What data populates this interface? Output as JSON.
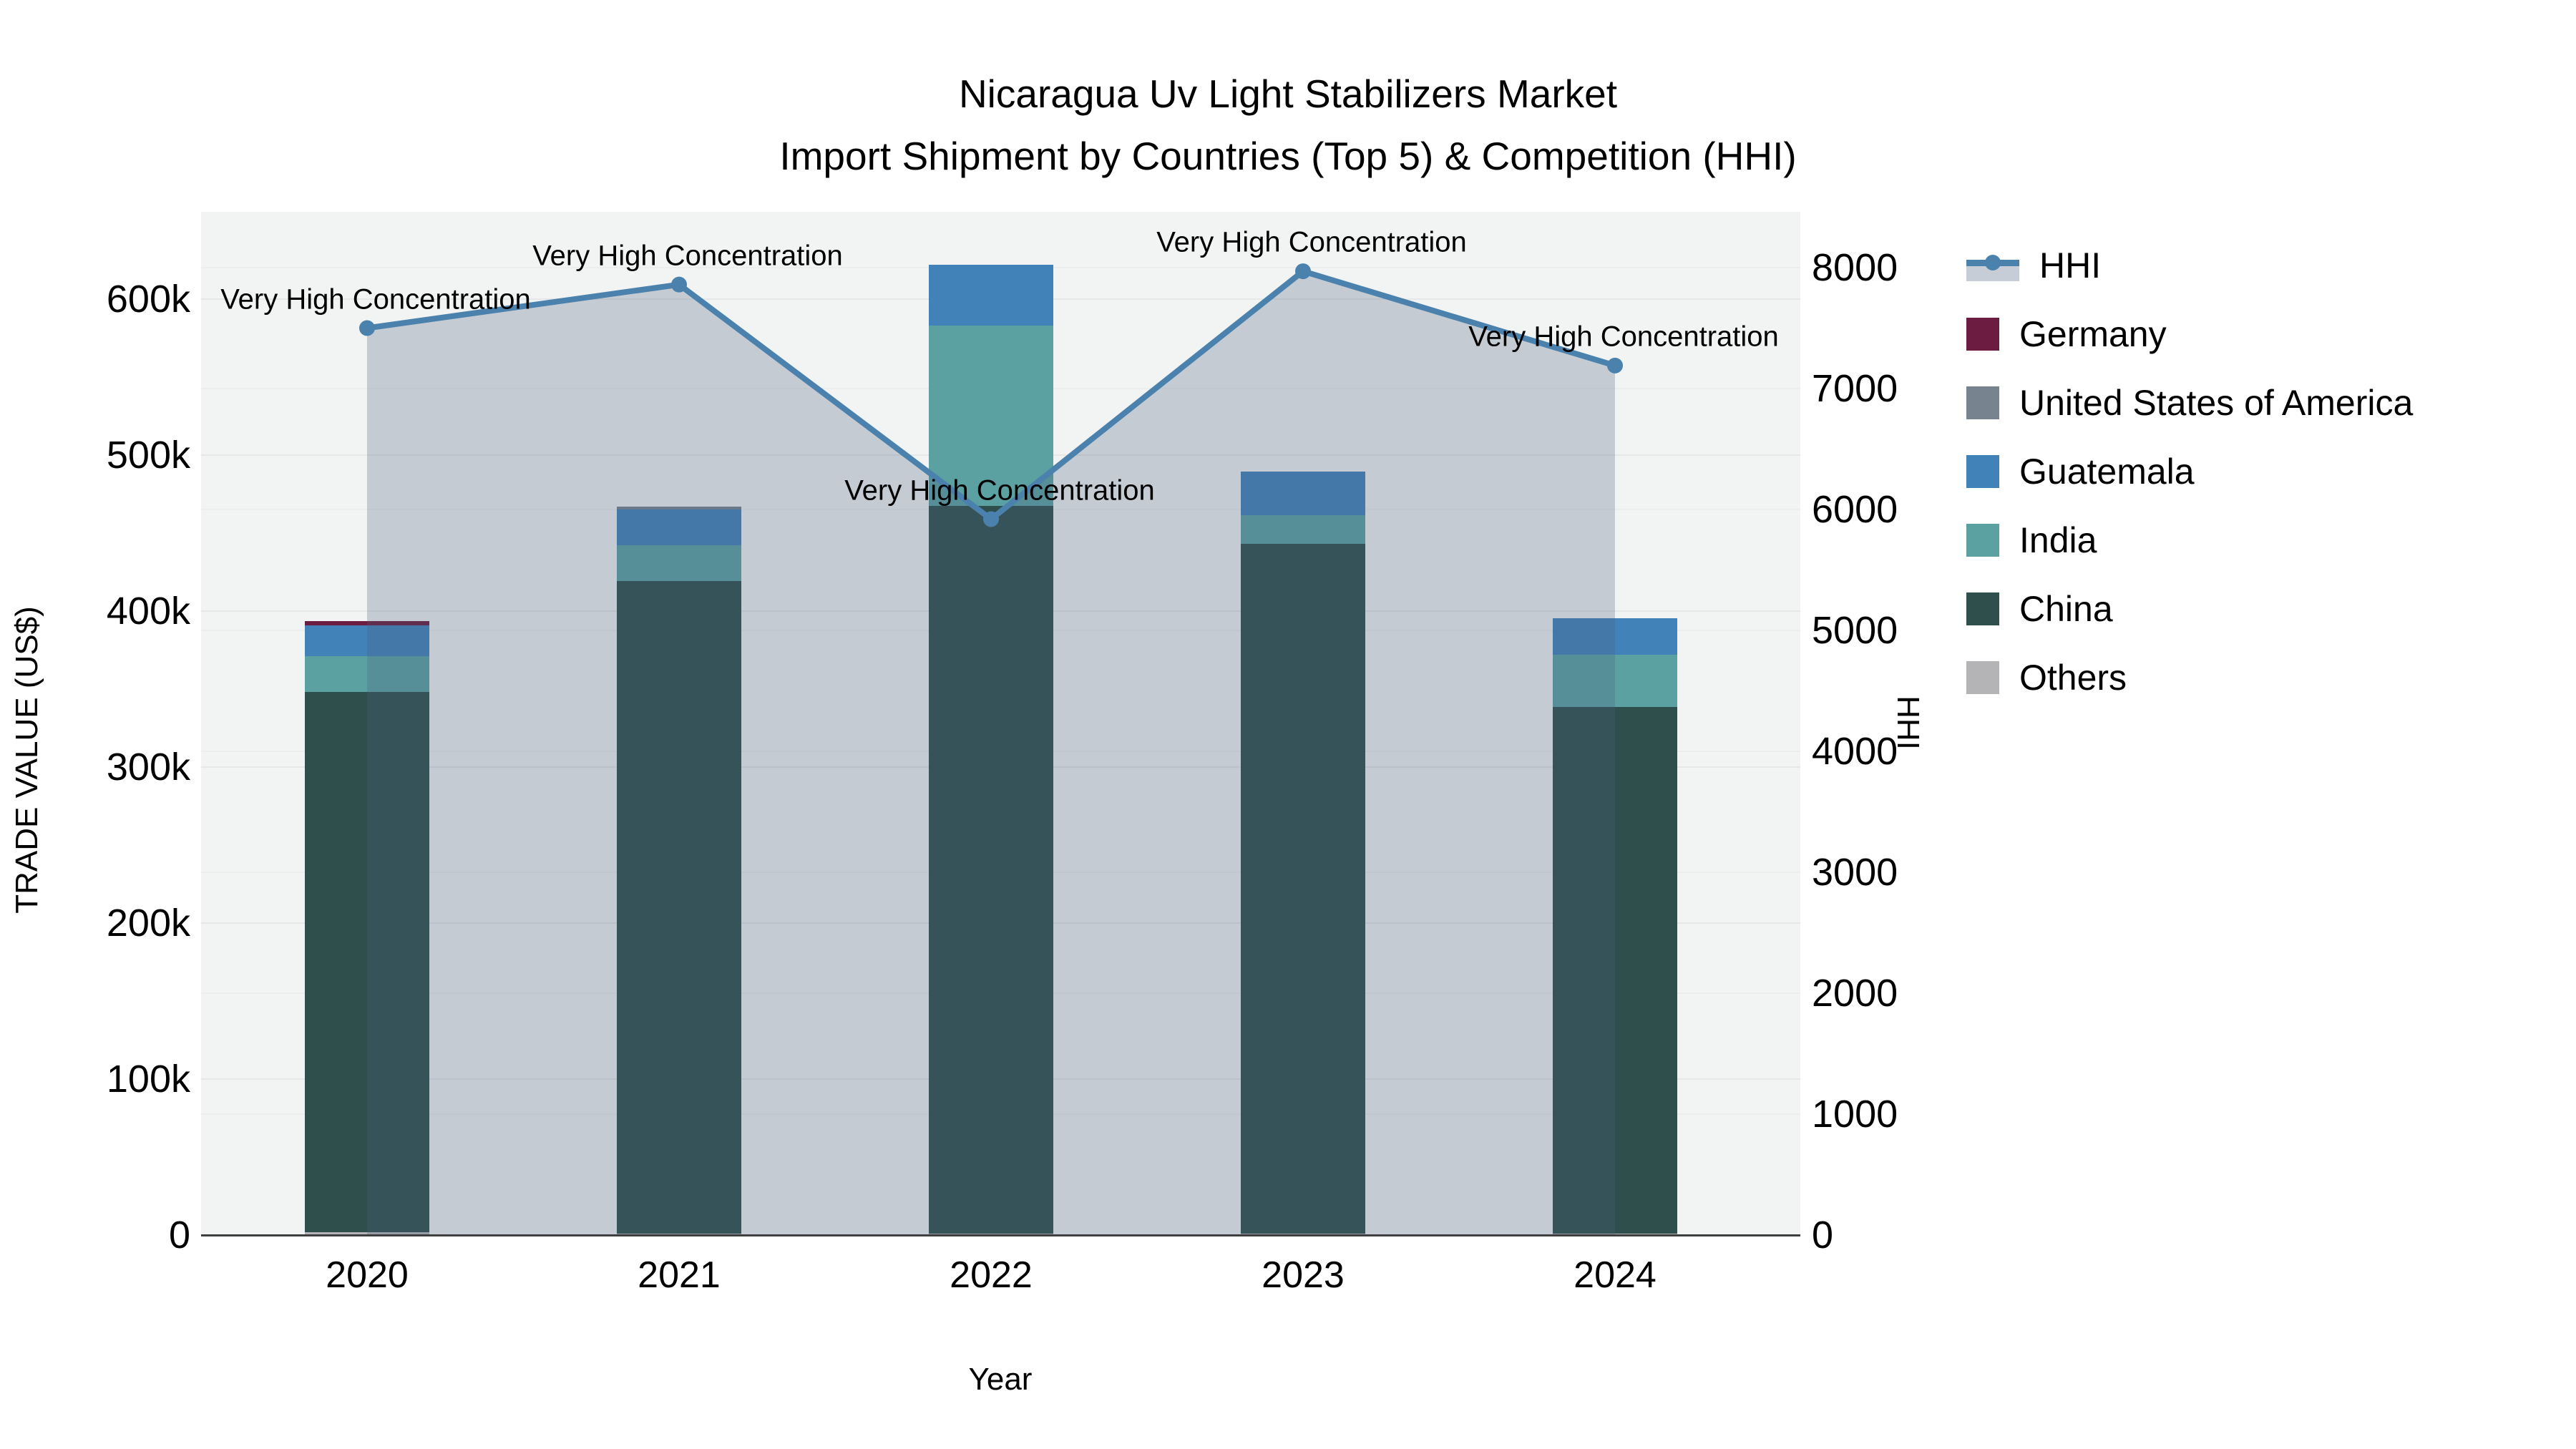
{
  "title": {
    "line1": "Nicaragua Uv Light Stabilizers Market",
    "line2": "Import Shipment by Countries (Top 5) & Competition (HHI)"
  },
  "axes": {
    "left": {
      "title": "TRADE VALUE (US$)",
      "tick_values": [
        0,
        100000,
        200000,
        300000,
        400000,
        500000,
        600000
      ],
      "tick_labels": [
        "0",
        "100k",
        "200k",
        "300k",
        "400k",
        "500k",
        "600k"
      ]
    },
    "right": {
      "title": "HHI",
      "tick_values": [
        0,
        1000,
        2000,
        3000,
        4000,
        5000,
        6000,
        7000,
        8000
      ],
      "tick_labels": [
        "0",
        "1000",
        "2000",
        "3000",
        "4000",
        "5000",
        "6000",
        "7000",
        "8000"
      ]
    },
    "x": {
      "title": "Year",
      "categories": [
        "2020",
        "2021",
        "2022",
        "2023",
        "2024"
      ]
    }
  },
  "legend": {
    "items": [
      {
        "label": "HHI",
        "type": "line",
        "color": "#4a81ad"
      },
      {
        "label": "Germany",
        "type": "swatch",
        "color": "#6b1c40"
      },
      {
        "label": "United States of America",
        "type": "swatch",
        "color": "#77838f"
      },
      {
        "label": "Guatemala",
        "type": "swatch",
        "color": "#4182b8"
      },
      {
        "label": "India",
        "type": "swatch",
        "color": "#5ba1a1"
      },
      {
        "label": "China",
        "type": "swatch",
        "color": "#2f4f4d"
      },
      {
        "label": "Others",
        "type": "swatch",
        "color": "#b4b4b6"
      }
    ]
  },
  "annotations": [
    {
      "year": "2020",
      "text": "Very High Concentration"
    },
    {
      "year": "2021",
      "text": "Very High Concentration"
    },
    {
      "year": "2022",
      "text": "Very High Concentration"
    },
    {
      "year": "2023",
      "text": "Very High Concentration"
    },
    {
      "year": "2024",
      "text": "Very High Concentration"
    }
  ],
  "chart_data": {
    "type": "bar",
    "subtype": "stacked-bars-with-line",
    "title": "Nicaragua Uv Light Stabilizers Market Import Shipment by Countries (Top 5) & Competition (HHI)",
    "xlabel": "Year",
    "ylabel_left": "TRADE VALUE (US$)",
    "ylabel_right": "HHI",
    "ylim_left": [
      0,
      656000
    ],
    "ylim_right": [
      0,
      8460
    ],
    "grid": true,
    "legend_position": "right",
    "categories": [
      "2020",
      "2021",
      "2022",
      "2023",
      "2024"
    ],
    "series": [
      {
        "name": "Others",
        "color": "#b4b4b6",
        "values": [
          2000,
          1000,
          1000,
          1000,
          1000
        ]
      },
      {
        "name": "China",
        "color": "#2f4f4d",
        "values": [
          346000,
          418500,
          466500,
          442000,
          337500
        ]
      },
      {
        "name": "India",
        "color": "#5ba1a1",
        "values": [
          23000,
          22500,
          115500,
          18500,
          33500
        ]
      },
      {
        "name": "Guatemala",
        "color": "#4182b8",
        "values": [
          20000,
          23000,
          39000,
          28000,
          23500
        ]
      },
      {
        "name": "United States of America",
        "color": "#77838f",
        "values": [
          0,
          1800,
          0,
          0,
          0
        ]
      },
      {
        "name": "Germany",
        "color": "#6b1c40",
        "values": [
          2500,
          0,
          0,
          0,
          0
        ]
      }
    ],
    "bar_totals": [
      393500,
      466800,
      622000,
      489500,
      395500
    ],
    "line_series": {
      "name": "HHI",
      "axis": "right",
      "color": "#4a81ad",
      "fill": "rgba(73,95,125,0.27)",
      "values": [
        7500,
        7860,
        5920,
        7970,
        7190
      ]
    }
  },
  "colors": {
    "figure_bg": "#ffffff",
    "plot_bg": "#f2f3f3",
    "gridline": "#e6e7e9",
    "axis_line": "#3f3f3f",
    "text": "#000000"
  }
}
